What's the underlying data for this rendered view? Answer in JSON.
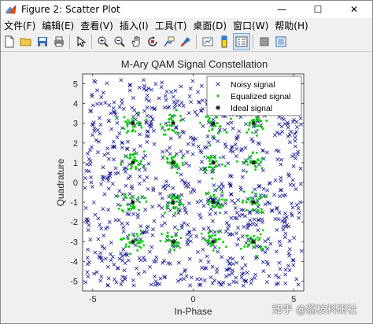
{
  "window": {
    "title": "Figure 2: Scatter Plot",
    "minimize_glyph": "—",
    "maximize_glyph": "☐",
    "close_glyph": "✕"
  },
  "menu": [
    {
      "label": "文件(F)"
    },
    {
      "label": "编辑(E)"
    },
    {
      "label": "查看(V)"
    },
    {
      "label": "插入(I)"
    },
    {
      "label": "工具(T)"
    },
    {
      "label": "桌面(D)"
    },
    {
      "label": "窗口(W)"
    },
    {
      "label": "帮助(H)"
    }
  ],
  "toolbar_icons": [
    "new-file-icon",
    "open-folder-icon",
    "save-icon",
    "print-icon",
    "pointer-icon",
    "zoom-in-icon",
    "zoom-out-icon",
    "pan-hand-icon",
    "rotate-3d-icon",
    "data-cursor-icon",
    "brush-icon",
    "insert-colorbar-icon",
    "insert-legend-icon",
    "property-editor-icon",
    "hide-plot-tools-icon",
    "show-plot-tools-icon"
  ],
  "watermark": "知乎 @荔枝科研社",
  "chart_data": {
    "type": "scatter",
    "title": "M-Ary QAM Signal Constellation",
    "xlabel": "In-Phase",
    "ylabel": "Quadrature",
    "xlim": [
      -5.5,
      5.5
    ],
    "ylim": [
      -5.5,
      5.5
    ],
    "xticks": [
      -5,
      0,
      5
    ],
    "yticks": [
      5,
      4,
      3,
      2,
      1,
      0,
      -1,
      -2,
      -3,
      -4,
      -5
    ],
    "grid": false,
    "legend_position": "top-right",
    "series": [
      {
        "name": "Noisy signal",
        "marker": "x",
        "color": "#00008b",
        "spread": 5.4,
        "count": 900
      },
      {
        "name": "Equalized signal",
        "marker": "dot",
        "color": "#00cc00",
        "spread": 0.28,
        "per_point": 30
      },
      {
        "name": "Ideal signal",
        "marker": "asterisk",
        "color": "#000000",
        "points": [
          [
            -3,
            3
          ],
          [
            -1,
            3
          ],
          [
            1,
            3
          ],
          [
            3,
            3
          ],
          [
            -3,
            1
          ],
          [
            -1,
            1
          ],
          [
            1,
            1
          ],
          [
            3,
            1
          ],
          [
            -3,
            -1
          ],
          [
            -1,
            -1
          ],
          [
            1,
            -1
          ],
          [
            3,
            -1
          ],
          [
            -3,
            -3
          ],
          [
            -1,
            -3
          ],
          [
            1,
            -3
          ],
          [
            3,
            -3
          ]
        ]
      }
    ]
  }
}
